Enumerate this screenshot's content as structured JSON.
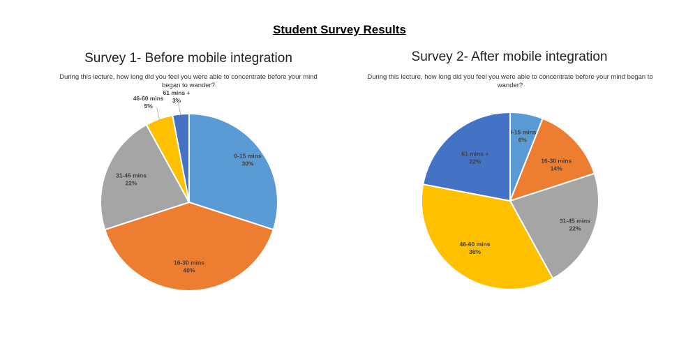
{
  "title": "Student Survey Results",
  "chart_data": [
    {
      "type": "pie",
      "title": "Survey 1- Before mobile integration",
      "subtitle": "During this lecture, how long did you feel you were able to concentrate before your mind began to wander?",
      "categories": [
        "0-15 mins",
        "16-30 mins",
        "31-45 mins",
        "46-60 mins",
        "61 mins +"
      ],
      "values": [
        30,
        40,
        22,
        5,
        3
      ],
      "value_labels": [
        "30%",
        "40%",
        "22%",
        "5%",
        "3%"
      ],
      "colors": [
        "#5B9BD5",
        "#ED7D31",
        "#A5A5A5",
        "#FFC000",
        "#4472C4"
      ]
    },
    {
      "type": "pie",
      "title": "Survey 2- After mobile integration",
      "subtitle": "During this lecture, how long did you feel you were able to concentrate before your mind began to wander?",
      "categories": [
        "0-15 mins",
        "16-30 mins",
        "31-45 mins",
        "46-60 mins",
        "61 mins +"
      ],
      "values": [
        6,
        14,
        22,
        36,
        22
      ],
      "value_labels": [
        "6%",
        "14%",
        "22%",
        "36%",
        "22%"
      ],
      "colors": [
        "#5B9BD5",
        "#ED7D31",
        "#A5A5A5",
        "#FFC000",
        "#4472C4"
      ]
    }
  ]
}
